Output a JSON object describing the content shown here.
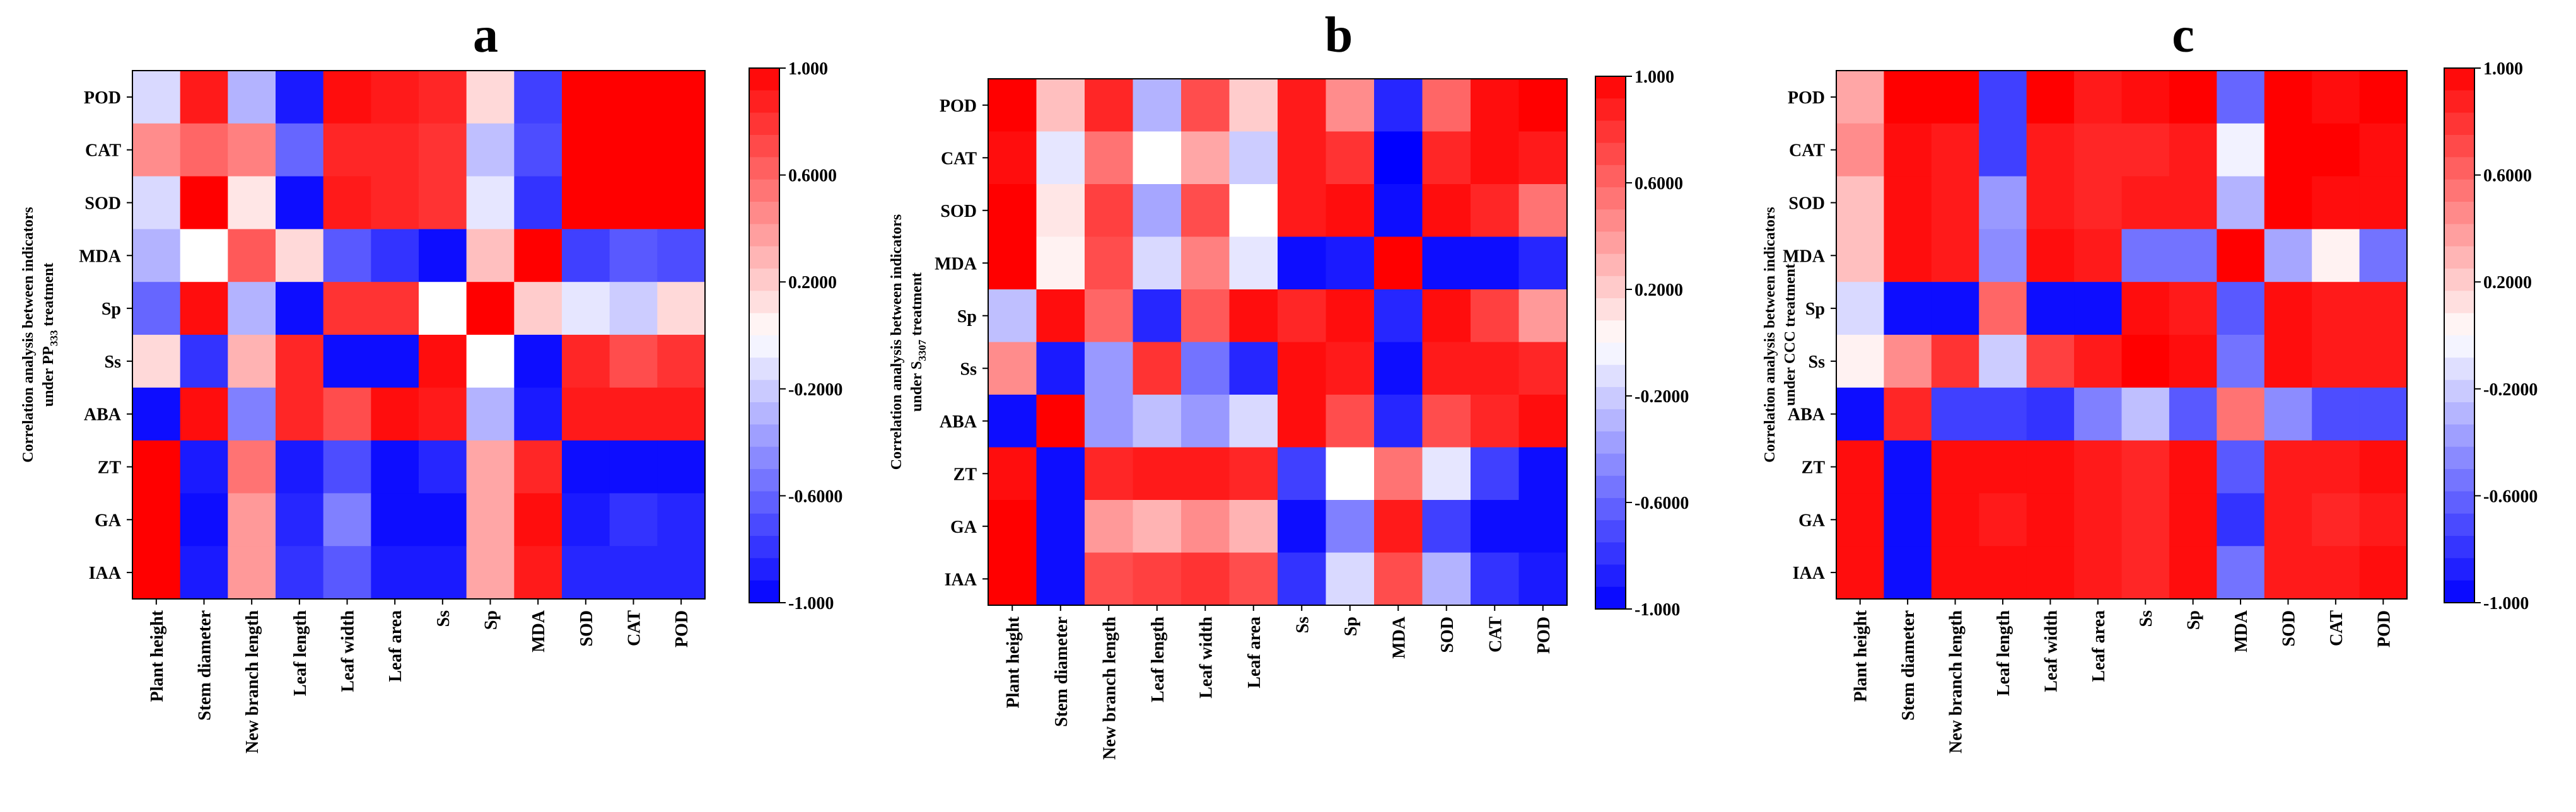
{
  "colors": {
    "negative": "#0000ff",
    "zero": "#ffffff",
    "positive": "#ff0000"
  },
  "colorbar": {
    "ticks": [
      "1.000",
      "0.6000",
      "0.2000",
      "-0.2000",
      "-0.6000",
      "-1.000"
    ]
  },
  "chart_data": [
    {
      "type": "heatmap",
      "panel_label": "a",
      "title": "Correlation analysis between indicators under PP333 treatment",
      "ylabel_line1": "Correlation analysis between indicators",
      "ylabel_line2_prefix": "under PP",
      "ylabel_line2_sub": "333",
      "ylabel_line2_suffix": " treatment",
      "rows": [
        "POD",
        "CAT",
        "SOD",
        "MDA",
        "Sp",
        "Ss",
        "ABA",
        "ZT",
        "GA",
        "IAA"
      ],
      "cols": [
        "Plant height",
        "Stem diameter",
        "New branch length",
        "Leaf length",
        "Leaf width",
        "Leaf area",
        "Ss",
        "Sp",
        "MDA",
        "SOD",
        "CAT",
        "POD"
      ],
      "zlim": [
        -1,
        1
      ],
      "values": [
        [
          -0.15,
          0.9,
          -0.3,
          -0.9,
          0.95,
          0.9,
          0.85,
          0.15,
          -0.75,
          1.0,
          1.0,
          1.0
        ],
        [
          0.45,
          0.6,
          0.5,
          -0.6,
          0.85,
          0.85,
          0.8,
          -0.25,
          -0.7,
          1.0,
          1.0,
          1.0
        ],
        [
          -0.15,
          1.0,
          0.1,
          -0.95,
          0.9,
          0.85,
          0.8,
          -0.1,
          -0.8,
          1.0,
          1.0,
          1.0
        ],
        [
          -0.3,
          0.0,
          0.65,
          0.15,
          -0.65,
          -0.8,
          -0.95,
          0.25,
          1.0,
          -0.75,
          -0.65,
          -0.7
        ],
        [
          -0.6,
          0.95,
          -0.3,
          -0.95,
          0.8,
          0.8,
          0.0,
          1.0,
          0.2,
          -0.1,
          -0.2,
          0.15
        ],
        [
          0.15,
          -0.8,
          0.3,
          0.85,
          -0.95,
          -0.95,
          0.95,
          0.0,
          -0.95,
          0.85,
          0.7,
          0.8
        ],
        [
          -0.95,
          0.95,
          -0.5,
          0.85,
          0.7,
          0.95,
          0.9,
          -0.3,
          -0.9,
          0.9,
          0.9,
          0.9
        ],
        [
          1.0,
          -0.9,
          0.55,
          -0.9,
          -0.7,
          -0.95,
          -0.85,
          0.35,
          0.85,
          -0.95,
          -0.95,
          -0.95
        ],
        [
          1.0,
          -0.95,
          0.4,
          -0.85,
          -0.5,
          -0.95,
          -0.95,
          0.35,
          0.95,
          -0.9,
          -0.8,
          -0.85
        ],
        [
          1.0,
          -0.9,
          0.4,
          -0.8,
          -0.65,
          -0.9,
          -0.9,
          0.35,
          0.9,
          -0.85,
          -0.85,
          -0.85
        ]
      ]
    },
    {
      "type": "heatmap",
      "panel_label": "b",
      "title": "Correlation analysis between indicators under S3307 treatment",
      "ylabel_line1": "Correlation analysis between indicators",
      "ylabel_line2_prefix": "under S",
      "ylabel_line2_sub": "3307",
      "ylabel_line2_suffix": " treatment",
      "rows": [
        "POD",
        "CAT",
        "SOD",
        "MDA",
        "Sp",
        "Ss",
        "ABA",
        "ZT",
        "GA",
        "IAA"
      ],
      "cols": [
        "Plant height",
        "Stem diameter",
        "New branch length",
        "Leaf length",
        "Leaf width",
        "Leaf area",
        "Ss",
        "Sp",
        "MDA",
        "SOD",
        "CAT",
        "POD"
      ],
      "zlim": [
        -1,
        1
      ],
      "values": [
        [
          1.0,
          0.25,
          0.85,
          -0.3,
          0.7,
          0.2,
          0.9,
          0.45,
          -0.85,
          0.6,
          0.95,
          1.0
        ],
        [
          0.95,
          -0.1,
          0.55,
          0.0,
          0.35,
          -0.2,
          0.9,
          0.8,
          -1.0,
          0.85,
          0.95,
          0.9
        ],
        [
          1.0,
          0.1,
          0.75,
          -0.35,
          0.7,
          0.0,
          0.9,
          0.95,
          -0.95,
          0.95,
          0.85,
          0.55
        ],
        [
          1.0,
          0.05,
          0.7,
          -0.15,
          0.5,
          -0.1,
          -0.95,
          -0.9,
          1.0,
          -0.95,
          -0.95,
          -0.85
        ],
        [
          -0.25,
          0.95,
          0.6,
          -0.85,
          0.65,
          0.95,
          0.85,
          0.95,
          -0.85,
          0.95,
          0.75,
          0.4
        ],
        [
          0.45,
          -0.9,
          -0.4,
          0.8,
          -0.55,
          -0.85,
          0.95,
          0.9,
          -0.95,
          0.9,
          0.9,
          0.85
        ],
        [
          -0.95,
          1.0,
          -0.4,
          -0.25,
          -0.4,
          -0.15,
          0.95,
          0.7,
          -0.85,
          0.7,
          0.85,
          0.95
        ],
        [
          0.95,
          -0.95,
          0.85,
          0.9,
          0.9,
          0.85,
          -0.75,
          0.0,
          0.55,
          -0.1,
          -0.75,
          -0.95
        ],
        [
          1.0,
          -0.95,
          0.4,
          0.3,
          0.45,
          0.3,
          -0.95,
          -0.5,
          0.9,
          -0.75,
          -0.95,
          -0.95
        ],
        [
          1.0,
          -0.95,
          0.7,
          0.75,
          0.8,
          0.7,
          -0.8,
          -0.15,
          0.7,
          -0.3,
          -0.8,
          -0.9
        ]
      ]
    },
    {
      "type": "heatmap",
      "panel_label": "c",
      "title": "Correlation analysis between indicators under CCC treatment",
      "ylabel_line1": "Correlation analysis between indicators",
      "ylabel_line2_prefix": "under CCC treatment",
      "ylabel_line2_sub": "",
      "ylabel_line2_suffix": "",
      "rows": [
        "POD",
        "CAT",
        "SOD",
        "MDA",
        "Sp",
        "Ss",
        "ABA",
        "ZT",
        "GA",
        "IAA"
      ],
      "cols": [
        "Plant height",
        "Stem diameter",
        "New branch length",
        "Leaf length",
        "Leaf width",
        "Leaf area",
        "Ss",
        "Sp",
        "MDA",
        "SOD",
        "CAT",
        "POD"
      ],
      "zlim": [
        -1,
        1
      ],
      "values": [
        [
          0.35,
          1.0,
          1.0,
          -0.75,
          1.0,
          0.9,
          0.95,
          1.0,
          -0.6,
          1.0,
          0.95,
          1.0
        ],
        [
          0.45,
          0.95,
          0.9,
          -0.75,
          0.9,
          0.85,
          0.85,
          0.9,
          -0.05,
          1.0,
          1.0,
          0.95
        ],
        [
          0.25,
          0.95,
          0.9,
          -0.4,
          0.9,
          0.85,
          0.9,
          0.9,
          -0.3,
          1.0,
          0.95,
          0.95
        ],
        [
          0.25,
          0.95,
          0.9,
          -0.45,
          0.95,
          0.9,
          -0.55,
          -0.55,
          1.0,
          -0.35,
          0.05,
          -0.55
        ],
        [
          -0.15,
          -0.95,
          -0.95,
          0.6,
          -0.95,
          -0.95,
          0.95,
          0.9,
          -0.65,
          0.95,
          0.9,
          0.9
        ],
        [
          0.05,
          0.45,
          0.8,
          -0.2,
          0.75,
          0.9,
          1.0,
          0.95,
          -0.55,
          0.95,
          0.9,
          0.9
        ],
        [
          -0.95,
          0.85,
          -0.75,
          -0.75,
          -0.8,
          -0.5,
          -0.25,
          -0.65,
          0.55,
          -0.45,
          -0.7,
          -0.7
        ],
        [
          0.95,
          -0.95,
          0.95,
          0.95,
          0.95,
          0.9,
          0.85,
          0.95,
          -0.65,
          0.9,
          0.9,
          0.95
        ],
        [
          0.95,
          -0.95,
          0.95,
          0.9,
          0.95,
          0.9,
          0.85,
          0.95,
          -0.8,
          0.9,
          0.85,
          0.9
        ],
        [
          0.95,
          -0.95,
          0.95,
          0.95,
          0.95,
          0.9,
          0.85,
          0.95,
          -0.55,
          0.9,
          0.9,
          0.95
        ]
      ]
    }
  ]
}
